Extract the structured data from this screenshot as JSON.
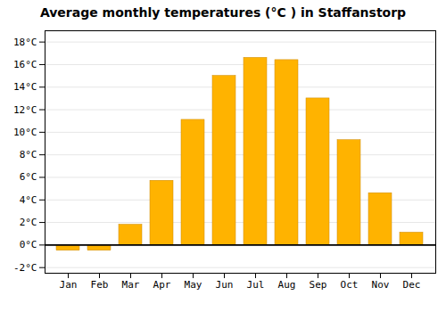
{
  "chart_data": {
    "type": "bar",
    "title": "Average monthly temperatures (°C ) in Staffanstorp",
    "categories": [
      "Jan",
      "Feb",
      "Mar",
      "Apr",
      "May",
      "Jun",
      "Jul",
      "Aug",
      "Sep",
      "Oct",
      "Nov",
      "Dec"
    ],
    "values": [
      -0.5,
      -0.5,
      1.8,
      5.7,
      11.1,
      15.0,
      16.6,
      16.4,
      13.0,
      9.3,
      4.6,
      1.1
    ],
    "color": "#FFB300",
    "ylim": [
      -2.5,
      19
    ],
    "yticks": [
      {
        "value": -2,
        "label": "-2°C"
      },
      {
        "value": 0,
        "label": "0°C"
      },
      {
        "value": 2,
        "label": "2°C"
      },
      {
        "value": 4,
        "label": "4°C"
      },
      {
        "value": 6,
        "label": "6°C"
      },
      {
        "value": 8,
        "label": "8°C"
      },
      {
        "value": 10,
        "label": "10°C"
      },
      {
        "value": 12,
        "label": "12°C"
      },
      {
        "value": 14,
        "label": "14°C"
      },
      {
        "value": 16,
        "label": "16°C"
      },
      {
        "value": 18,
        "label": "18°C"
      }
    ],
    "grid": true
  }
}
